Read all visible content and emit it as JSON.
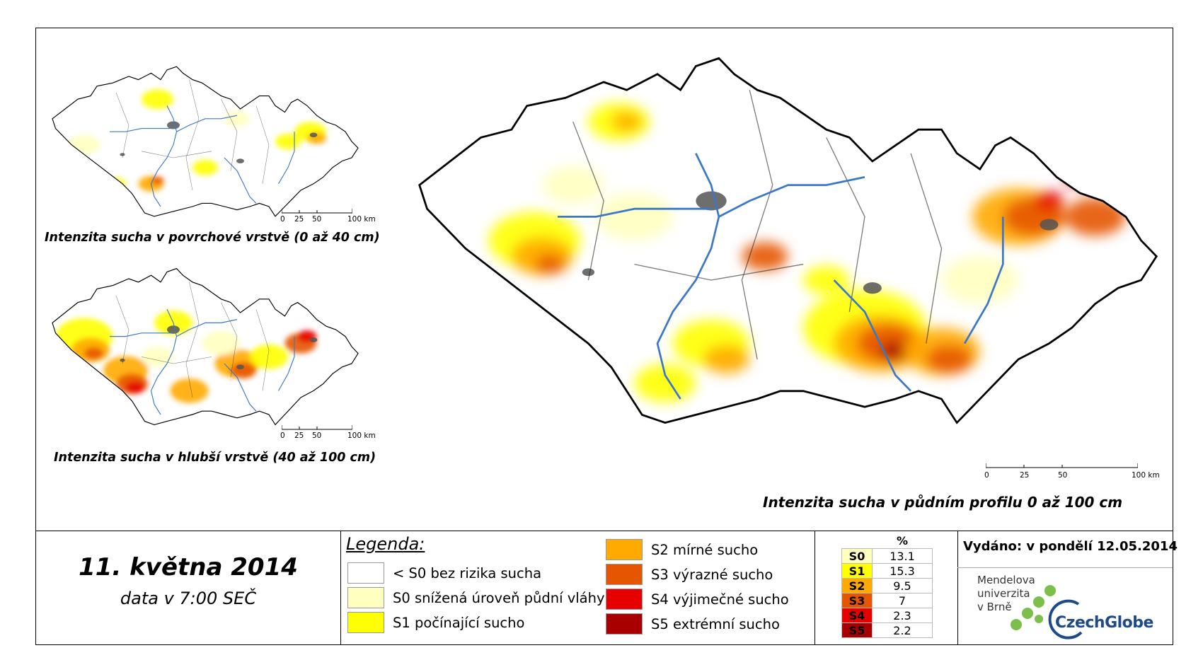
{
  "maps": {
    "surface": {
      "caption": "Intenzita sucha v povrchové vrstvě (0 až 40 cm)"
    },
    "deep": {
      "caption": "Intenzita sucha v hlubší vrstvě (40 až 100 cm)"
    },
    "profile": {
      "caption": "Intenzita sucha v půdním profilu 0 až 100 cm"
    }
  },
  "scale_bar": {
    "ticks": [
      "0",
      "25",
      "50",
      "100 km"
    ]
  },
  "date": {
    "title": "11. května 2014",
    "subtitle": "data v 7:00 SEČ"
  },
  "legend": {
    "title": "Legenda:",
    "items": [
      {
        "label": "< S0 bez rizika sucha",
        "color": "#ffffff"
      },
      {
        "label": "S0 snížená úroveň půdní vláhy",
        "color": "#ffffc0"
      },
      {
        "label": "S1 počínající sucho",
        "color": "#ffff00"
      },
      {
        "label": "S2 mírné sucho",
        "color": "#ffaa00"
      },
      {
        "label": "S3 výrazné sucho",
        "color": "#e65500"
      },
      {
        "label": "S4 výjimečné sucho",
        "color": "#e60000"
      },
      {
        "label": "S5 extrémní sucho",
        "color": "#a80000"
      }
    ]
  },
  "stats": {
    "header": "%",
    "rows": [
      {
        "class": "S0",
        "value": "13.1",
        "color": "#ffffc0"
      },
      {
        "class": "S1",
        "value": "15.3",
        "color": "#ffff00"
      },
      {
        "class": "S2",
        "value": "9.5",
        "color": "#ffaa00"
      },
      {
        "class": "S3",
        "value": "7",
        "color": "#e65500"
      },
      {
        "class": "S4",
        "value": "2.3",
        "color": "#e60000"
      },
      {
        "class": "S5",
        "value": "2.2",
        "color": "#a80000"
      }
    ]
  },
  "issued": "Vydáno: v pondělí 12.05.2014",
  "logos": {
    "mendel": [
      "Mendelova",
      "univerzita",
      "v Brně"
    ],
    "czechglobe": "CzechGlobe"
  },
  "colors": {
    "rivers": "#3b78c8",
    "boundaries": "#222222",
    "urban": "#555555"
  }
}
